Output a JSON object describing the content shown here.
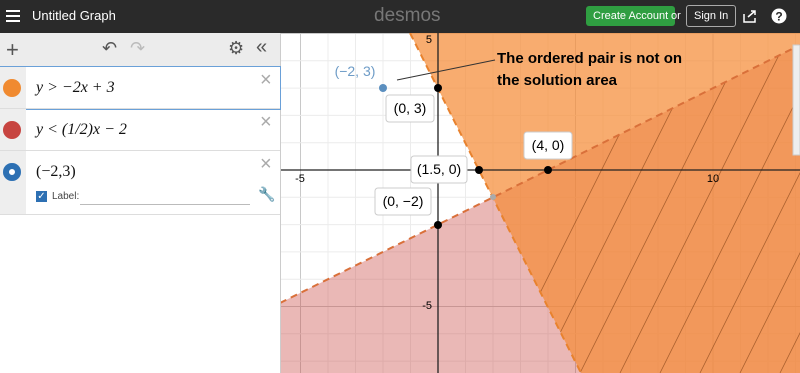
{
  "header": {
    "title": "Untitled Graph",
    "logo": "desmos",
    "create_account": "Create Account",
    "or": "or",
    "sign_in": "Sign In"
  },
  "expressions": [
    {
      "latex": "y > −2x + 3"
    },
    {
      "latex": "y < (1/2)x − 2"
    },
    {
      "latex": "(−2,3)",
      "label_option": "Label:"
    }
  ],
  "graph": {
    "x_tick_labels": [
      "-5",
      "10"
    ],
    "y_tick_labels": [
      "5",
      "-5"
    ],
    "point_labels": [
      "(−2, 3)",
      "(0, 3)",
      "(1.5, 0)",
      "(4, 0)",
      "(0, −2)"
    ],
    "annotation": [
      "The ordered pair is not on",
      "the solution area"
    ]
  }
}
